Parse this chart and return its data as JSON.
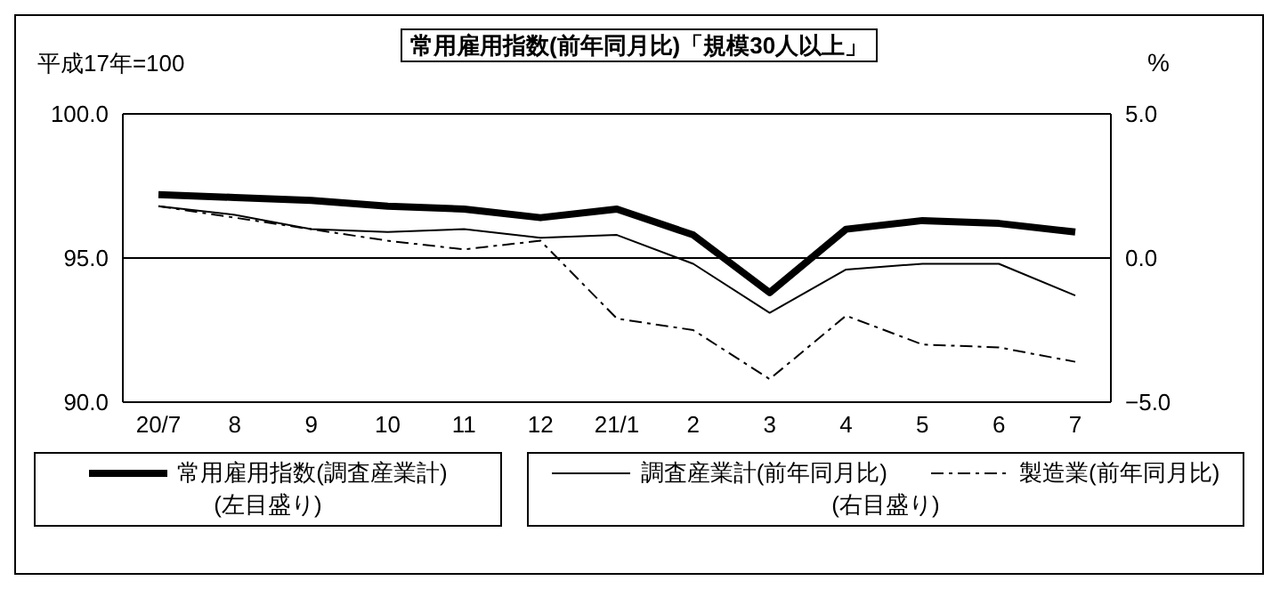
{
  "chart_data": {
    "type": "line",
    "title": "常用雇用指数(前年同月比)「規模30人以上」",
    "ylabel": "平成17年=100",
    "y2label": "%",
    "categories": [
      "20/7",
      "8",
      "9",
      "10",
      "11",
      "12",
      "21/1",
      "2",
      "3",
      "4",
      "5",
      "6",
      "7"
    ],
    "series": [
      {
        "name": "常用雇用指数(調査産業計)",
        "color": "#000000",
        "line_style": "solid",
        "values": [
          97.2,
          97.1,
          97.0,
          96.8,
          96.7,
          96.4,
          96.7,
          95.8,
          93.8,
          96.0,
          96.3,
          96.2,
          95.9
        ]
      },
      {
        "name": "調査産業計(前年同月比)",
        "color": "#000000",
        "line_style": "solid",
        "axis": "y2",
        "values": [
          1.8,
          1.5,
          1.0,
          0.9,
          1.0,
          0.7,
          0.8,
          -0.2,
          -1.9,
          -0.4,
          -0.2,
          -0.2,
          -1.3
        ]
      },
      {
        "name": "製造業(前年同月比)",
        "color": "#000000",
        "line_style": "dashed",
        "axis": "y2",
        "values": [
          1.8,
          1.4,
          1.0,
          0.6,
          0.3,
          0.6,
          -2.1,
          -2.5,
          -4.2,
          -2.0,
          -3.0,
          -3.1,
          -3.6
        ]
      }
    ],
    "ylim": [
      90,
      100
    ],
    "yticks": [
      {
        "value": 90,
        "label": "90.0"
      },
      {
        "value": 95,
        "label": "95.0"
      },
      {
        "value": 100,
        "label": "100.0"
      }
    ],
    "y2lim": [
      -5,
      5
    ],
    "y2ticks": [
      {
        "value": -5,
        "label": "−5.0"
      },
      {
        "value": 0,
        "label": "0.0"
      },
      {
        "value": 5,
        "label": "5.0"
      }
    ],
    "grid": "y",
    "legend": "bottom",
    "marker": "none",
    "annotations": [
      "(左目盛り)",
      "(右目盛り)"
    ]
  }
}
